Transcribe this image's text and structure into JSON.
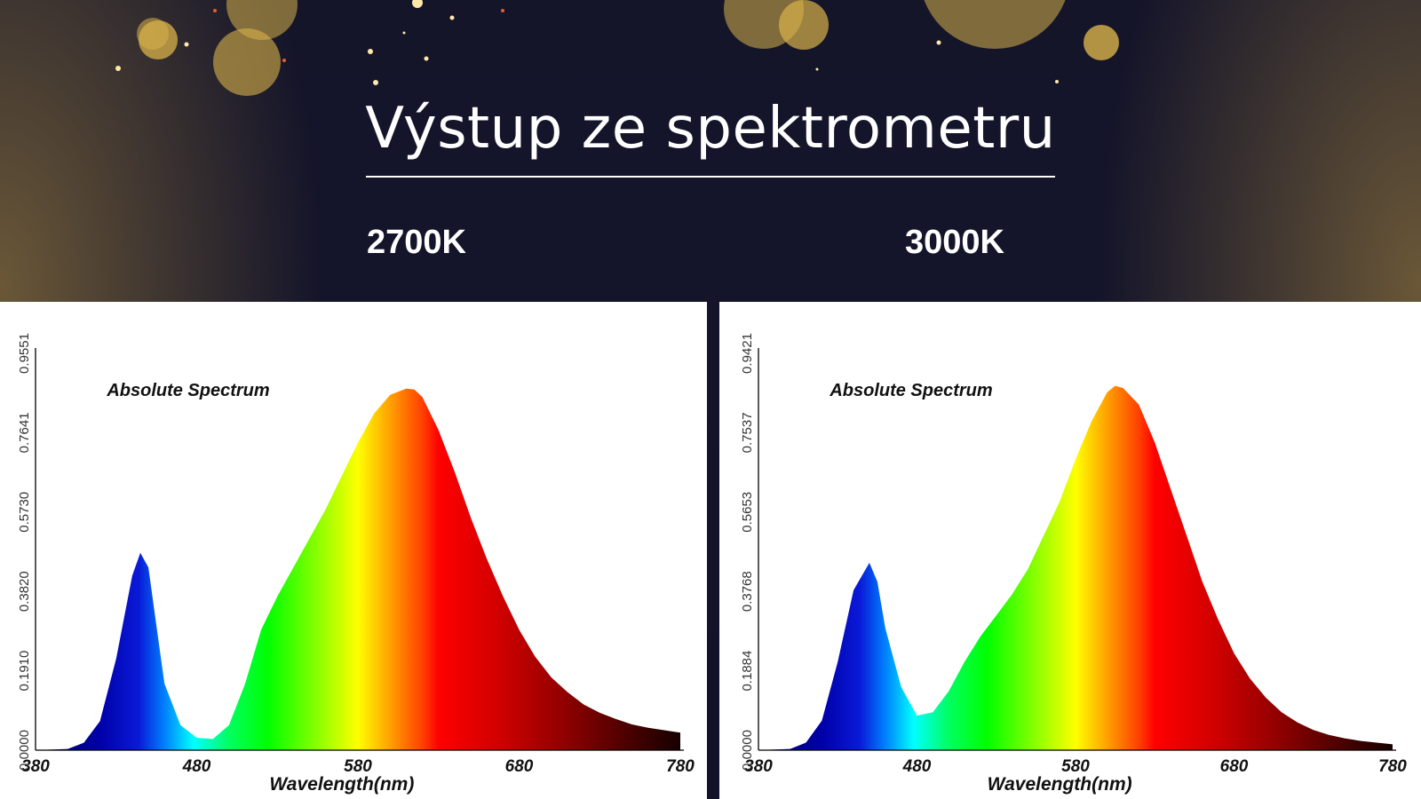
{
  "slide": {
    "title": "Výstup ze spektrometru",
    "label_left": "2700K",
    "label_right": "3000K"
  },
  "colors": {
    "background": "#15152a",
    "accent_gold": "#d9b24a",
    "text": "#ffffff"
  },
  "chart_data": [
    {
      "type": "area",
      "title": "Absolute Spectrum",
      "xlabel": "Wavelength(nm)",
      "ylabel": "",
      "xlim": [
        380,
        780
      ],
      "ylim": [
        0,
        0.9551
      ],
      "x_ticks": [
        "380",
        "480",
        "580",
        "680",
        "780"
      ],
      "y_ticks": [
        "0.0000",
        "0.1910",
        "0.3820",
        "0.5730",
        "0.7641",
        "0.9551"
      ],
      "x": [
        380,
        400,
        410,
        420,
        430,
        440,
        445,
        450,
        455,
        460,
        470,
        480,
        490,
        500,
        510,
        520,
        530,
        540,
        550,
        560,
        570,
        580,
        590,
        600,
        610,
        615,
        620,
        630,
        640,
        650,
        660,
        670,
        680,
        690,
        700,
        710,
        720,
        730,
        740,
        750,
        760,
        770,
        780
      ],
      "y": [
        0.0,
        0.003,
        0.018,
        0.07,
        0.22,
        0.42,
        0.475,
        0.44,
        0.3,
        0.16,
        0.06,
        0.03,
        0.027,
        0.06,
        0.16,
        0.29,
        0.37,
        0.44,
        0.51,
        0.58,
        0.66,
        0.74,
        0.81,
        0.855,
        0.87,
        0.868,
        0.85,
        0.77,
        0.67,
        0.56,
        0.46,
        0.37,
        0.29,
        0.225,
        0.175,
        0.14,
        0.11,
        0.09,
        0.075,
        0.062,
        0.054,
        0.048,
        0.042
      ],
      "grid": false,
      "legend": "none"
    },
    {
      "type": "area",
      "title": "Absolute Spectrum",
      "xlabel": "Wavelength(nm)",
      "ylabel": "",
      "xlim": [
        380,
        780
      ],
      "ylim": [
        0,
        0.9421
      ],
      "x_ticks": [
        "380",
        "480",
        "580",
        "680",
        "780"
      ],
      "y_ticks": [
        "0.0000",
        "0.1884",
        "0.3768",
        "0.5653",
        "0.7537",
        "0.9421"
      ],
      "x": [
        380,
        400,
        410,
        420,
        430,
        440,
        450,
        455,
        460,
        470,
        480,
        490,
        500,
        510,
        520,
        530,
        540,
        550,
        560,
        570,
        580,
        590,
        600,
        605,
        610,
        620,
        630,
        640,
        650,
        660,
        670,
        680,
        690,
        700,
        710,
        720,
        730,
        740,
        750,
        760,
        770,
        780
      ],
      "y": [
        0.0,
        0.003,
        0.018,
        0.07,
        0.21,
        0.38,
        0.445,
        0.4,
        0.29,
        0.15,
        0.082,
        0.09,
        0.14,
        0.21,
        0.27,
        0.32,
        0.37,
        0.43,
        0.51,
        0.59,
        0.69,
        0.78,
        0.85,
        0.865,
        0.86,
        0.82,
        0.73,
        0.62,
        0.51,
        0.4,
        0.31,
        0.23,
        0.17,
        0.125,
        0.09,
        0.066,
        0.048,
        0.036,
        0.028,
        0.022,
        0.018,
        0.014
      ],
      "grid": false,
      "legend": "none"
    }
  ]
}
